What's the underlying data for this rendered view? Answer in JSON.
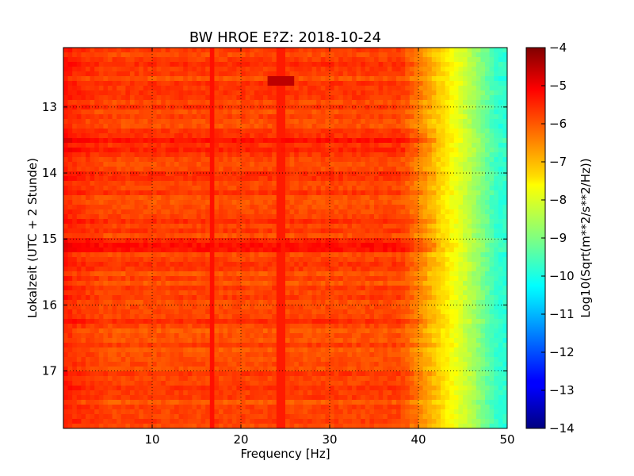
{
  "chart_data": {
    "type": "heatmap",
    "title": "BW HROE E?Z: 2018-10-24",
    "xlabel": "Frequency [Hz]",
    "ylabel": "Lokalzeit (UTC + 2 Stunde)",
    "x_range": [
      0,
      50
    ],
    "y_range": [
      12.1,
      17.87
    ],
    "x_ticks": [
      "10",
      "20",
      "30",
      "40",
      "50"
    ],
    "y_ticks": [
      "13",
      "14",
      "15",
      "16",
      "17"
    ],
    "y_tick_values": [
      13,
      14,
      15,
      16,
      17
    ],
    "y_inverted": true,
    "grid": true,
    "colormap": "jet",
    "colorbar": {
      "label": "Log10(Sqrt(m**2/s**2/Hz))",
      "range": [
        -14,
        -4
      ],
      "ticks": [
        "−4",
        "−5",
        "−6",
        "−7",
        "−8",
        "−9",
        "−10",
        "−11",
        "−12",
        "−13",
        "−14"
      ]
    },
    "dominant_value": -5.9,
    "high_frequency_rolloff": [
      {
        "frequency_hz": 40,
        "value": -6.5
      },
      {
        "frequency_hz": 43,
        "value": -7.5
      },
      {
        "frequency_hz": 46,
        "value": -8.5
      },
      {
        "frequency_hz": 49,
        "value": -9.8
      }
    ],
    "features": [
      {
        "kind": "vertical-line",
        "frequency_hz": 16.7,
        "value": -5.4
      },
      {
        "kind": "vertical-line",
        "frequency_hz": 24.5,
        "value": -5.5
      },
      {
        "kind": "horizontal-band",
        "time": 13.6,
        "value": -5.4
      },
      {
        "kind": "horizontal-band",
        "time": 15.1,
        "value": -5.4
      },
      {
        "kind": "spot",
        "frequency_hz": 24.5,
        "time": 12.55,
        "value": -4.6
      }
    ]
  }
}
